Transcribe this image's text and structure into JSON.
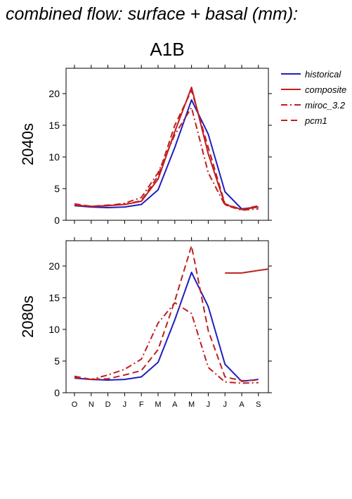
{
  "title": "combined flow: surface + basal (mm):",
  "scenario": "A1B",
  "colors": {
    "historical": "#1f1fbf",
    "scenario": "#bf1f1f"
  },
  "legend": [
    "historical",
    "composite",
    "miroc_3.2",
    "pcm1"
  ],
  "chart_data": [
    {
      "type": "line",
      "row_label": "2040s",
      "categories": [
        "O",
        "N",
        "D",
        "J",
        "F",
        "M",
        "A",
        "M",
        "J",
        "J",
        "A",
        "S"
      ],
      "ylim": [
        0,
        24
      ],
      "yticks": [
        0,
        5,
        10,
        15,
        20
      ],
      "series": [
        {
          "name": "historical",
          "style": "solid",
          "values": [
            2.3,
            2.1,
            2.0,
            2.1,
            2.5,
            4.8,
            11.5,
            19.0,
            13.6,
            4.5,
            1.8,
            2.1
          ]
        },
        {
          "name": "composite",
          "style": "solid",
          "values": [
            2.4,
            2.2,
            2.3,
            2.5,
            3.0,
            6.5,
            14.0,
            21.0,
            10.5,
            2.5,
            1.7,
            2.1
          ]
        },
        {
          "name": "miroc_3.2",
          "style": "dashdot",
          "values": [
            2.4,
            2.2,
            2.3,
            2.7,
            3.6,
            7.5,
            13.5,
            17.8,
            7.5,
            2.4,
            1.6,
            1.8
          ]
        },
        {
          "name": "pcm1",
          "style": "dash",
          "values": [
            2.6,
            2.2,
            2.4,
            2.5,
            3.1,
            7.0,
            15.0,
            20.5,
            11.5,
            2.6,
            1.7,
            2.3
          ]
        }
      ]
    },
    {
      "type": "line",
      "row_label": "2080s",
      "categories": [
        "O",
        "N",
        "D",
        "J",
        "F",
        "M",
        "A",
        "M",
        "J",
        "J",
        "A",
        "S"
      ],
      "ylim": [
        0,
        24
      ],
      "yticks": [
        0,
        5,
        10,
        15,
        20
      ],
      "series": [
        {
          "name": "historical",
          "style": "solid",
          "values": [
            2.3,
            2.1,
            2.0,
            2.1,
            2.5,
            4.8,
            11.5,
            19.0,
            13.6,
            4.5,
            1.8,
            2.1
          ]
        },
        {
          "name": "composite",
          "style": "solid",
          "values": [
            null,
            null,
            null,
            null,
            null,
            null,
            null,
            null,
            null,
            18.9,
            18.9,
            19.3
          ]
        },
        {
          "name": "miroc_3.2",
          "style": "dashdot",
          "values": [
            2.4,
            2.1,
            2.8,
            3.7,
            5.3,
            11.0,
            14.2,
            12.5,
            4.0,
            1.7,
            1.5,
            1.6
          ]
        },
        {
          "name": "pcm1",
          "style": "dash",
          "values": [
            2.6,
            2.1,
            2.2,
            2.8,
            3.5,
            6.8,
            14.5,
            23.2,
            9.8,
            2.5,
            1.9,
            2.0
          ]
        }
      ]
    }
  ]
}
